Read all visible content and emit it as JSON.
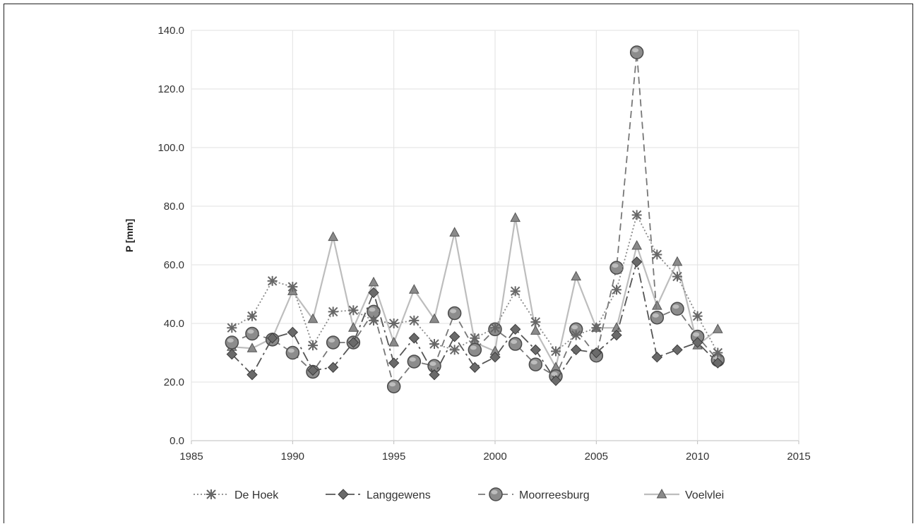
{
  "chart_data": {
    "type": "line",
    "title": "",
    "xlabel": "",
    "ylabel": "P [mm]",
    "xlim": [
      1985,
      2015
    ],
    "ylim": [
      0,
      140
    ],
    "x_ticks": [
      "1985",
      "1990",
      "1995",
      "2000",
      "2005",
      "2010",
      "2015"
    ],
    "y_ticks": [
      "0.0",
      "20.0",
      "40.0",
      "60.0",
      "80.0",
      "100.0",
      "120.0",
      "140.0"
    ],
    "grid": true,
    "legend_position": "bottom",
    "x": [
      1987,
      1988,
      1989,
      1990,
      1991,
      1992,
      1993,
      1994,
      1995,
      1996,
      1997,
      1998,
      1999,
      2000,
      2001,
      2002,
      2003,
      2004,
      2005,
      2006,
      2007,
      2008,
      2009,
      2010,
      2011
    ],
    "series": [
      {
        "name": "De Hoek",
        "marker": "asterisk",
        "dash": "dotted",
        "color": "#888888",
        "values": [
          38.5,
          42.5,
          54.5,
          52.5,
          32.5,
          44,
          44.5,
          41,
          40,
          41,
          33,
          31,
          35,
          38.5,
          51,
          40.5,
          30.5,
          36,
          38.5,
          51.5,
          77,
          63.5,
          56,
          42.5,
          30
        ]
      },
      {
        "name": "Langgewens",
        "marker": "diamond",
        "dash": "dashdot",
        "color": "#555555",
        "values": [
          29.5,
          22.5,
          35,
          37,
          24,
          25,
          33.5,
          50.5,
          26.5,
          35,
          22.5,
          35.5,
          25,
          28.5,
          38,
          31,
          20.5,
          31,
          30,
          36,
          61,
          28.5,
          31,
          33.5,
          26.5
        ]
      },
      {
        "name": "Moorreesburg",
        "marker": "circle",
        "dash": "dashed",
        "color": "#777777",
        "values": [
          33.5,
          36.5,
          34.5,
          30,
          23.5,
          33.5,
          33.5,
          44,
          18.5,
          27,
          25.5,
          43.5,
          31,
          38,
          33,
          26,
          22,
          38,
          29,
          59,
          132.5,
          42,
          45,
          35.5,
          27.5
        ]
      },
      {
        "name": "Voelvlei",
        "marker": "triangle",
        "dash": "solid",
        "color": "#bdbdbd",
        "values": [
          32,
          31.5,
          35,
          51,
          41.5,
          69.5,
          38.5,
          54,
          33.5,
          51.5,
          41.5,
          71,
          33.5,
          30.5,
          76,
          37.5,
          25,
          56,
          38.5,
          38.5,
          66.5,
          46,
          61,
          32.5,
          38
        ]
      }
    ]
  }
}
